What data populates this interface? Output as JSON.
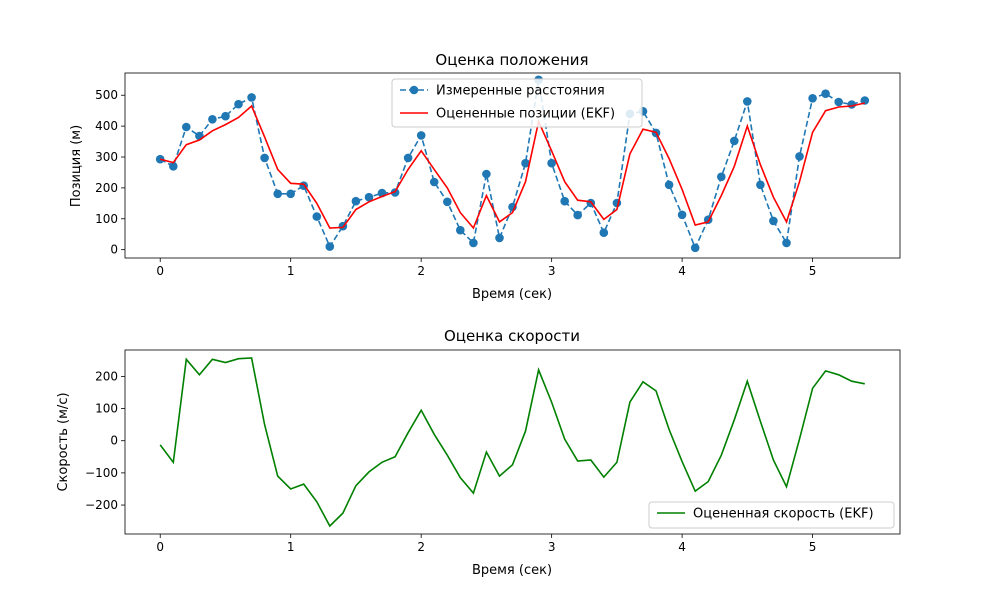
{
  "chart_data": [
    {
      "type": "line",
      "title": "Оценка положения",
      "xlabel": "Время (сек)",
      "ylabel": "Позиция (м)",
      "xlim": [
        -0.27,
        5.67
      ],
      "ylim": [
        -27,
        572
      ],
      "x_ticks": [
        0,
        1,
        2,
        3,
        4,
        5
      ],
      "y_ticks": [
        0,
        100,
        200,
        300,
        400,
        500
      ],
      "legend_position": "top-center",
      "grid": false,
      "x": [
        0,
        0.1,
        0.2,
        0.3,
        0.4,
        0.5,
        0.6,
        0.7,
        0.8,
        0.9,
        1.0,
        1.1,
        1.2,
        1.3,
        1.4,
        1.5,
        1.6,
        1.7,
        1.8,
        1.9,
        2.0,
        2.1,
        2.2,
        2.3,
        2.4,
        2.5,
        2.6,
        2.7,
        2.8,
        2.9,
        3.0,
        3.1,
        3.2,
        3.3,
        3.4,
        3.5,
        3.6,
        3.7,
        3.8,
        3.9,
        4.0,
        4.1,
        4.2,
        4.3,
        4.4,
        4.5,
        4.6,
        4.7,
        4.8,
        4.9,
        5.0,
        5.1,
        5.2,
        5.3,
        5.4
      ],
      "series": [
        {
          "name": "Измеренные расстояния",
          "color": "#1f77b4",
          "style": "dashed-with-markers",
          "values": [
            293,
            270,
            397,
            368,
            422,
            432,
            471,
            493,
            297,
            181,
            181,
            207,
            107,
            10,
            76,
            157,
            170,
            183,
            185,
            297,
            370,
            219,
            155,
            63,
            22,
            245,
            38,
            138,
            280,
            550,
            280,
            157,
            112,
            151,
            55,
            151,
            440,
            448,
            378,
            210,
            113,
            6,
            97,
            236,
            352,
            480,
            210,
            93,
            22,
            302,
            490,
            505,
            478,
            470,
            483
          ]
        },
        {
          "name": "Оцененные позиции (EKF)",
          "color": "#ff0000",
          "style": "solid",
          "values": [
            293,
            282,
            340,
            355,
            385,
            405,
            428,
            465,
            365,
            260,
            215,
            212,
            150,
            70,
            72,
            130,
            155,
            172,
            188,
            260,
            320,
            260,
            200,
            120,
            70,
            175,
            90,
            120,
            220,
            415,
            320,
            220,
            160,
            155,
            98,
            130,
            310,
            390,
            380,
            295,
            195,
            80,
            90,
            175,
            270,
            400,
            275,
            170,
            90,
            220,
            380,
            450,
            462,
            465,
            475
          ]
        }
      ]
    },
    {
      "type": "line",
      "title": "Оценка скорости",
      "xlabel": "Время (сек)",
      "ylabel": "Скорость (м/с)",
      "xlim": [
        -0.27,
        5.67
      ],
      "ylim": [
        -290,
        282
      ],
      "x_ticks": [
        0,
        1,
        2,
        3,
        4,
        5
      ],
      "y_ticks": [
        -200,
        -100,
        0,
        100,
        200
      ],
      "legend_position": "lower-right",
      "grid": false,
      "x": [
        0,
        0.1,
        0.2,
        0.3,
        0.4,
        0.5,
        0.6,
        0.7,
        0.8,
        0.9,
        1.0,
        1.1,
        1.2,
        1.3,
        1.4,
        1.5,
        1.6,
        1.7,
        1.8,
        1.9,
        2.0,
        2.1,
        2.2,
        2.3,
        2.4,
        2.5,
        2.6,
        2.7,
        2.8,
        2.9,
        3.0,
        3.1,
        3.2,
        3.3,
        3.4,
        3.5,
        3.6,
        3.7,
        3.8,
        3.9,
        4.0,
        4.1,
        4.2,
        4.3,
        4.4,
        4.5,
        4.6,
        4.7,
        4.8,
        4.9,
        5.0,
        5.1,
        5.2,
        5.3,
        5.4
      ],
      "series": [
        {
          "name": "Оцененная скорость (EKF)",
          "color": "#008000",
          "style": "solid",
          "values": [
            -13,
            -67,
            253,
            205,
            253,
            243,
            255,
            257,
            50,
            -110,
            -150,
            -135,
            -190,
            -265,
            -225,
            -140,
            -97,
            -67,
            -50,
            25,
            95,
            20,
            -45,
            -115,
            -163,
            -35,
            -110,
            -75,
            30,
            220,
            120,
            5,
            -63,
            -60,
            -113,
            -67,
            120,
            183,
            155,
            35,
            -65,
            -157,
            -127,
            -45,
            65,
            185,
            60,
            -60,
            -143,
            5,
            163,
            217,
            205,
            185,
            177
          ]
        }
      ]
    }
  ]
}
